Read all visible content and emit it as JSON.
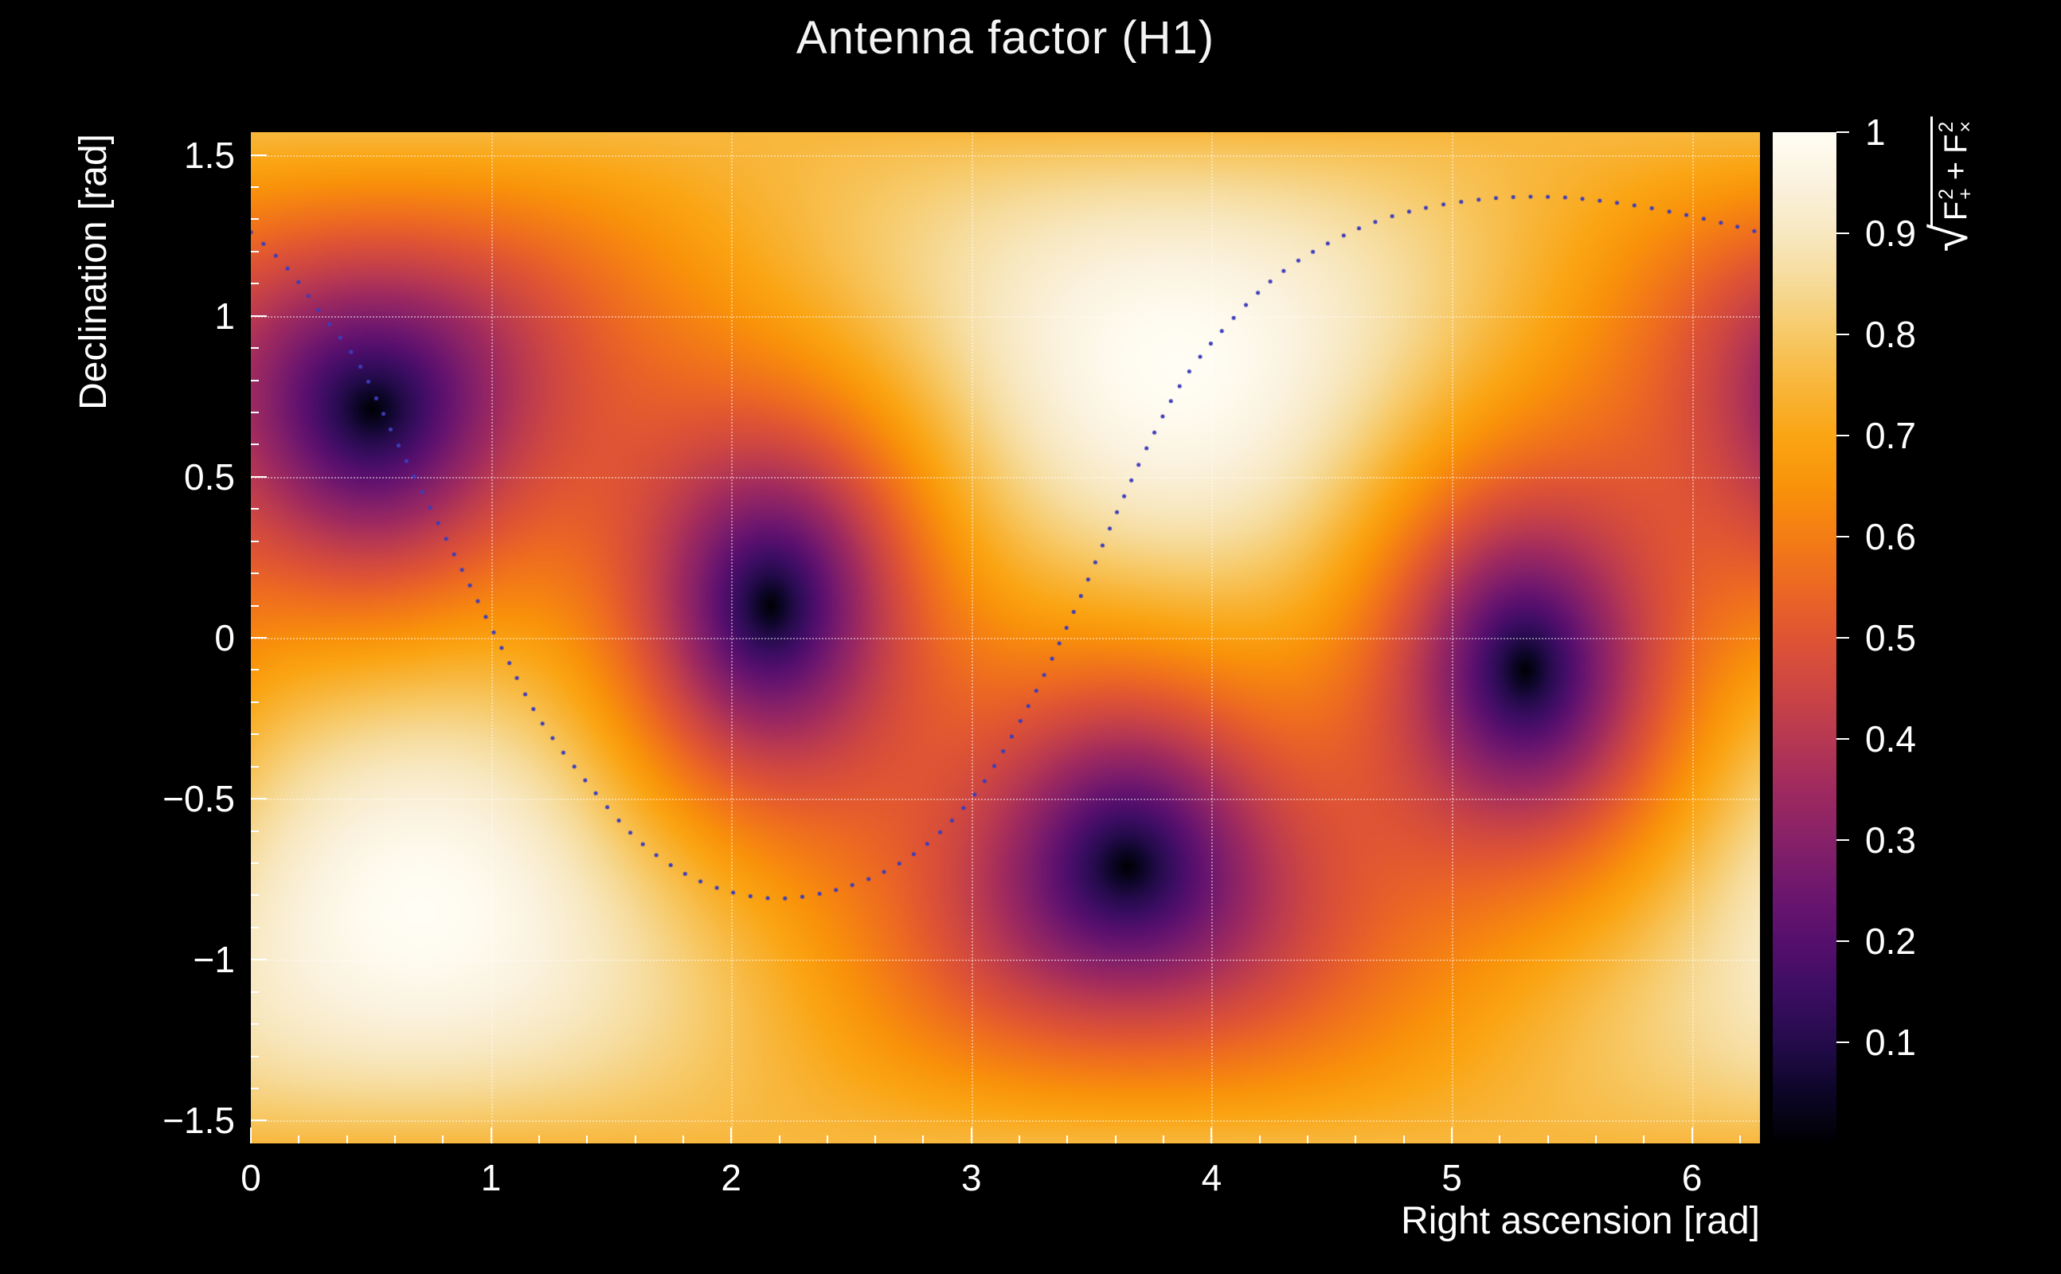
{
  "chart_data": {
    "type": "heatmap",
    "title": "Antenna factor (H1)",
    "background_color": "#000000",
    "axes": {
      "x": {
        "label": "Right ascension [rad]",
        "min": 0,
        "max": 6.2832,
        "minor_step": 0.2,
        "ticks": [
          {
            "v": 0,
            "label": "0"
          },
          {
            "v": 1,
            "label": "1"
          },
          {
            "v": 2,
            "label": "2"
          },
          {
            "v": 3,
            "label": "3"
          },
          {
            "v": 4,
            "label": "4"
          },
          {
            "v": 5,
            "label": "5"
          },
          {
            "v": 6,
            "label": "6"
          }
        ]
      },
      "y": {
        "label": "Declination [rad]",
        "min": -1.5708,
        "max": 1.5708,
        "minor_step": 0.1,
        "ticks": [
          {
            "v": -1.5,
            "label": "−1.5"
          },
          {
            "v": -1,
            "label": "−1"
          },
          {
            "v": -0.5,
            "label": "−0.5"
          },
          {
            "v": 0,
            "label": "0"
          },
          {
            "v": 0.5,
            "label": "0.5"
          },
          {
            "v": 1,
            "label": "1"
          },
          {
            "v": 1.5,
            "label": "1.5"
          }
        ]
      }
    },
    "grid": {
      "style": "dotted",
      "color": "rgba(255,255,255,0.45)",
      "x_lines": [
        1,
        2,
        3,
        4,
        5,
        6
      ],
      "y_lines": [
        -1.5,
        -1,
        -0.5,
        0,
        0.5,
        1,
        1.5
      ]
    },
    "colorbar": {
      "min": 0,
      "max": 1,
      "ticks": [
        {
          "v": 0.1,
          "label": "0.1"
        },
        {
          "v": 0.2,
          "label": "0.2"
        },
        {
          "v": 0.3,
          "label": "0.3"
        },
        {
          "v": 0.4,
          "label": "0.4"
        },
        {
          "v": 0.5,
          "label": "0.5"
        },
        {
          "v": 0.6,
          "label": "0.6"
        },
        {
          "v": 0.7,
          "label": "0.7"
        },
        {
          "v": 0.8,
          "label": "0.8"
        },
        {
          "v": 0.9,
          "label": "0.9"
        },
        {
          "v": 1,
          "label": "1"
        }
      ],
      "label_plain": "sqrt(F_+^2 + F_x^2)",
      "label_parts": {
        "radical": "√",
        "term1_base": "F",
        "term1_sup": "2",
        "term1_sub": "+",
        "operator": "+",
        "term2_base": "F",
        "term2_sup": "2",
        "term2_sub": "×"
      },
      "colormap_stops": [
        [
          0.0,
          "#000003"
        ],
        [
          0.05,
          "#0d0628"
        ],
        [
          0.1,
          "#250b4c"
        ],
        [
          0.15,
          "#3c0d63"
        ],
        [
          0.2,
          "#560f6d"
        ],
        [
          0.25,
          "#6e176e"
        ],
        [
          0.3,
          "#872168"
        ],
        [
          0.35,
          "#9f2a5f"
        ],
        [
          0.4,
          "#b73852"
        ],
        [
          0.45,
          "#cd4643"
        ],
        [
          0.5,
          "#df5434"
        ],
        [
          0.55,
          "#ec6823"
        ],
        [
          0.6,
          "#f47d15"
        ],
        [
          0.65,
          "#f9930a"
        ],
        [
          0.7,
          "#faa514"
        ],
        [
          0.75,
          "#f8b63a"
        ],
        [
          0.8,
          "#f7c966"
        ],
        [
          0.85,
          "#f6da97"
        ],
        [
          0.9,
          "#f8e8c0"
        ],
        [
          0.95,
          "#fbf2de"
        ],
        [
          1.0,
          "#fffdf4"
        ]
      ]
    },
    "pattern_model": {
      "kind": "interferometer_antenna_magnitude",
      "formula": "sqrt(Fplus^2+Fcross^2); Fplus=0.5*(1+cos^2(theta))*cos(2*phi-pi/2); Fcross=cos(theta)*sin(2*phi-pi/2); theta,phi measured from detector zenith",
      "zenith": {
        "ra": 3.85,
        "dec": 0.85
      },
      "null_reference": {
        "ra": 0.5,
        "dec": 0.75
      }
    },
    "maxima": [
      {
        "ra": 3.85,
        "dec": 0.85,
        "value": 1.0
      },
      {
        "ra": 0.71,
        "dec": -0.85,
        "value": 1.0
      }
    ],
    "nulls": [
      {
        "ra": 0.5,
        "dec": 0.75,
        "value": 0.0
      },
      {
        "ra": 2.15,
        "dec": 0.1,
        "value": 0.0
      },
      {
        "ra": 3.6,
        "dec": -0.75,
        "value": 0.0
      },
      {
        "ra": 5.3,
        "dec": -0.12,
        "value": 0.0
      }
    ],
    "track": {
      "style": "dotted",
      "color": "#3d3dbb",
      "dot_size": 5,
      "dot_gap": 21,
      "points": [
        [
          0.0,
          1.26
        ],
        [
          0.15,
          1.15
        ],
        [
          0.3,
          1.0
        ],
        [
          0.45,
          0.85
        ],
        [
          0.6,
          0.62
        ],
        [
          0.75,
          0.4
        ],
        [
          0.9,
          0.18
        ],
        [
          1.05,
          -0.04
        ],
        [
          1.2,
          -0.25
        ],
        [
          1.4,
          -0.45
        ],
        [
          1.6,
          -0.62
        ],
        [
          1.8,
          -0.73
        ],
        [
          2.0,
          -0.79
        ],
        [
          2.2,
          -0.81
        ],
        [
          2.4,
          -0.79
        ],
        [
          2.6,
          -0.74
        ],
        [
          2.8,
          -0.65
        ],
        [
          3.0,
          -0.5
        ],
        [
          3.15,
          -0.33
        ],
        [
          3.3,
          -0.12
        ],
        [
          3.45,
          0.12
        ],
        [
          3.6,
          0.38
        ],
        [
          3.75,
          0.62
        ],
        [
          3.9,
          0.82
        ],
        [
          4.1,
          1.0
        ],
        [
          4.3,
          1.14
        ],
        [
          4.55,
          1.25
        ],
        [
          4.8,
          1.32
        ],
        [
          5.1,
          1.36
        ],
        [
          5.4,
          1.37
        ],
        [
          5.7,
          1.35
        ],
        [
          6.0,
          1.31
        ],
        [
          6.28,
          1.26
        ]
      ]
    }
  }
}
